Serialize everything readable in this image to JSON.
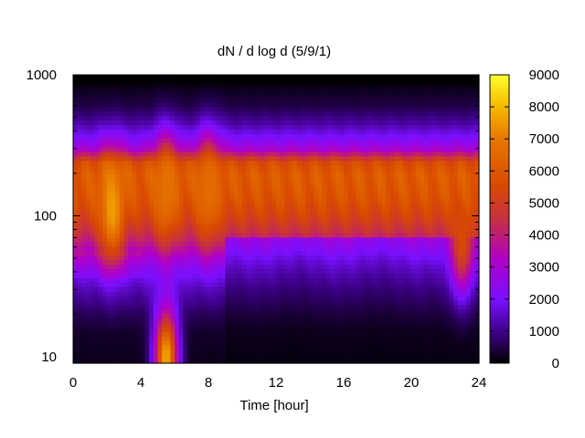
{
  "chart_data": {
    "type": "heatmap",
    "title": "dN / d log d (5/9/1)",
    "xlabel": "Time [hour]",
    "ylabel": "",
    "x_range": [
      0,
      24
    ],
    "x_ticks": [
      0,
      4,
      8,
      12,
      16,
      20,
      24
    ],
    "x_tick_labels": [
      "0",
      "4",
      "8",
      "12",
      "16",
      "20",
      "24"
    ],
    "y_scale": "log",
    "y_range": [
      9,
      1000
    ],
    "y_ticks": [
      10,
      100,
      1000
    ],
    "y_tick_labels": [
      "10",
      "100",
      "1000"
    ],
    "colorbar": {
      "range": [
        0,
        9000
      ],
      "ticks": [
        0,
        1000,
        2000,
        3000,
        4000,
        5000,
        6000,
        7000,
        8000,
        9000
      ],
      "tick_labels": [
        "0",
        "1000",
        "2000",
        "3000",
        "4000",
        "5000",
        "6000",
        "7000",
        "8000",
        "9000"
      ],
      "colormap": [
        "#000000",
        "#3a0080",
        "#7a10ff",
        "#b000c8",
        "#c83040",
        "#d84a00",
        "#e87800",
        "#f8c000",
        "#ffff30"
      ]
    },
    "profile": {
      "diameter": [
        10,
        15,
        20,
        30,
        40,
        50,
        60,
        80,
        100,
        130,
        160,
        200,
        240,
        300,
        350,
        450,
        600,
        800,
        900
      ],
      "value": [
        200,
        300,
        600,
        1300,
        2000,
        2700,
        3500,
        4600,
        5300,
        5800,
        6000,
        6100,
        5600,
        3000,
        2200,
        1200,
        500,
        200,
        0
      ]
    },
    "events": [
      {
        "hour": 2.3,
        "diameter": 110,
        "peak": 7600
      },
      {
        "hour": 5.5,
        "diameter": 10,
        "peak": 7800
      },
      {
        "hour": 5.5,
        "diameter": 150,
        "peak": 6800
      },
      {
        "hour": 8.0,
        "diameter": 150,
        "peak": 6600
      },
      {
        "hour": 23.0,
        "diameter": 65,
        "peak": 5600
      }
    ]
  }
}
